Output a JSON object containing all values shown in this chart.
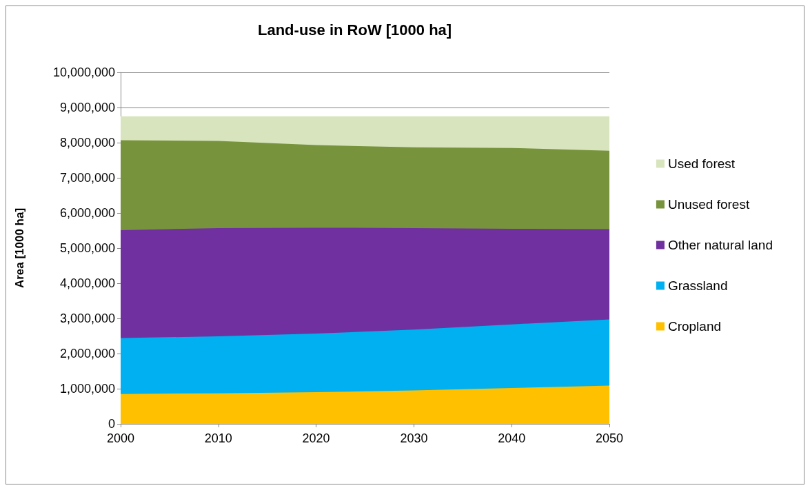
{
  "chart_data": {
    "type": "area",
    "stacked": true,
    "title": "Land-use in RoW [1000 ha]",
    "ylabel": "Area [1000 ha]",
    "x": [
      2000,
      2010,
      2020,
      2030,
      2040,
      2050
    ],
    "series": [
      {
        "name": "Cropland",
        "color": "#ffc000",
        "values": [
          850000,
          870000,
          900000,
          950000,
          1020000,
          1090000
        ]
      },
      {
        "name": "Grassland",
        "color": "#00b0f0",
        "values": [
          1590000,
          1620000,
          1670000,
          1730000,
          1810000,
          1880000
        ]
      },
      {
        "name": "Other natural land",
        "color": "#7030a0",
        "values": [
          3070000,
          3080000,
          3010000,
          2890000,
          2720000,
          2570000
        ]
      },
      {
        "name": "Unused forest",
        "color": "#77933c",
        "values": [
          2560000,
          2480000,
          2350000,
          2300000,
          2300000,
          2230000
        ]
      },
      {
        "name": "Used forest",
        "color": "#d7e4bd",
        "values": [
          680000,
          700000,
          820000,
          880000,
          900000,
          980000
        ]
      }
    ],
    "xlim": [
      2000,
      2050
    ],
    "xticks": [
      2000,
      2010,
      2020,
      2030,
      2040,
      2050
    ],
    "ylim": [
      0,
      10000000
    ],
    "yticks": [
      0,
      {
        "value": 1000000,
        "label": "1,000,000"
      },
      {
        "value": 2000000,
        "label": "2,000,000"
      },
      {
        "value": 3000000,
        "label": "3,000,000"
      },
      {
        "value": 4000000,
        "label": "4,000,000"
      },
      {
        "value": 5000000,
        "label": "5,000,000"
      },
      {
        "value": 6000000,
        "label": "6,000,000"
      },
      {
        "value": 7000000,
        "label": "7,000,000"
      },
      {
        "value": 8000000,
        "label": "8,000,000"
      },
      {
        "value": 9000000,
        "label": "9,000,000"
      },
      {
        "value": 10000000,
        "label": "10,000,000"
      }
    ],
    "grid": "y",
    "legend": "right"
  }
}
